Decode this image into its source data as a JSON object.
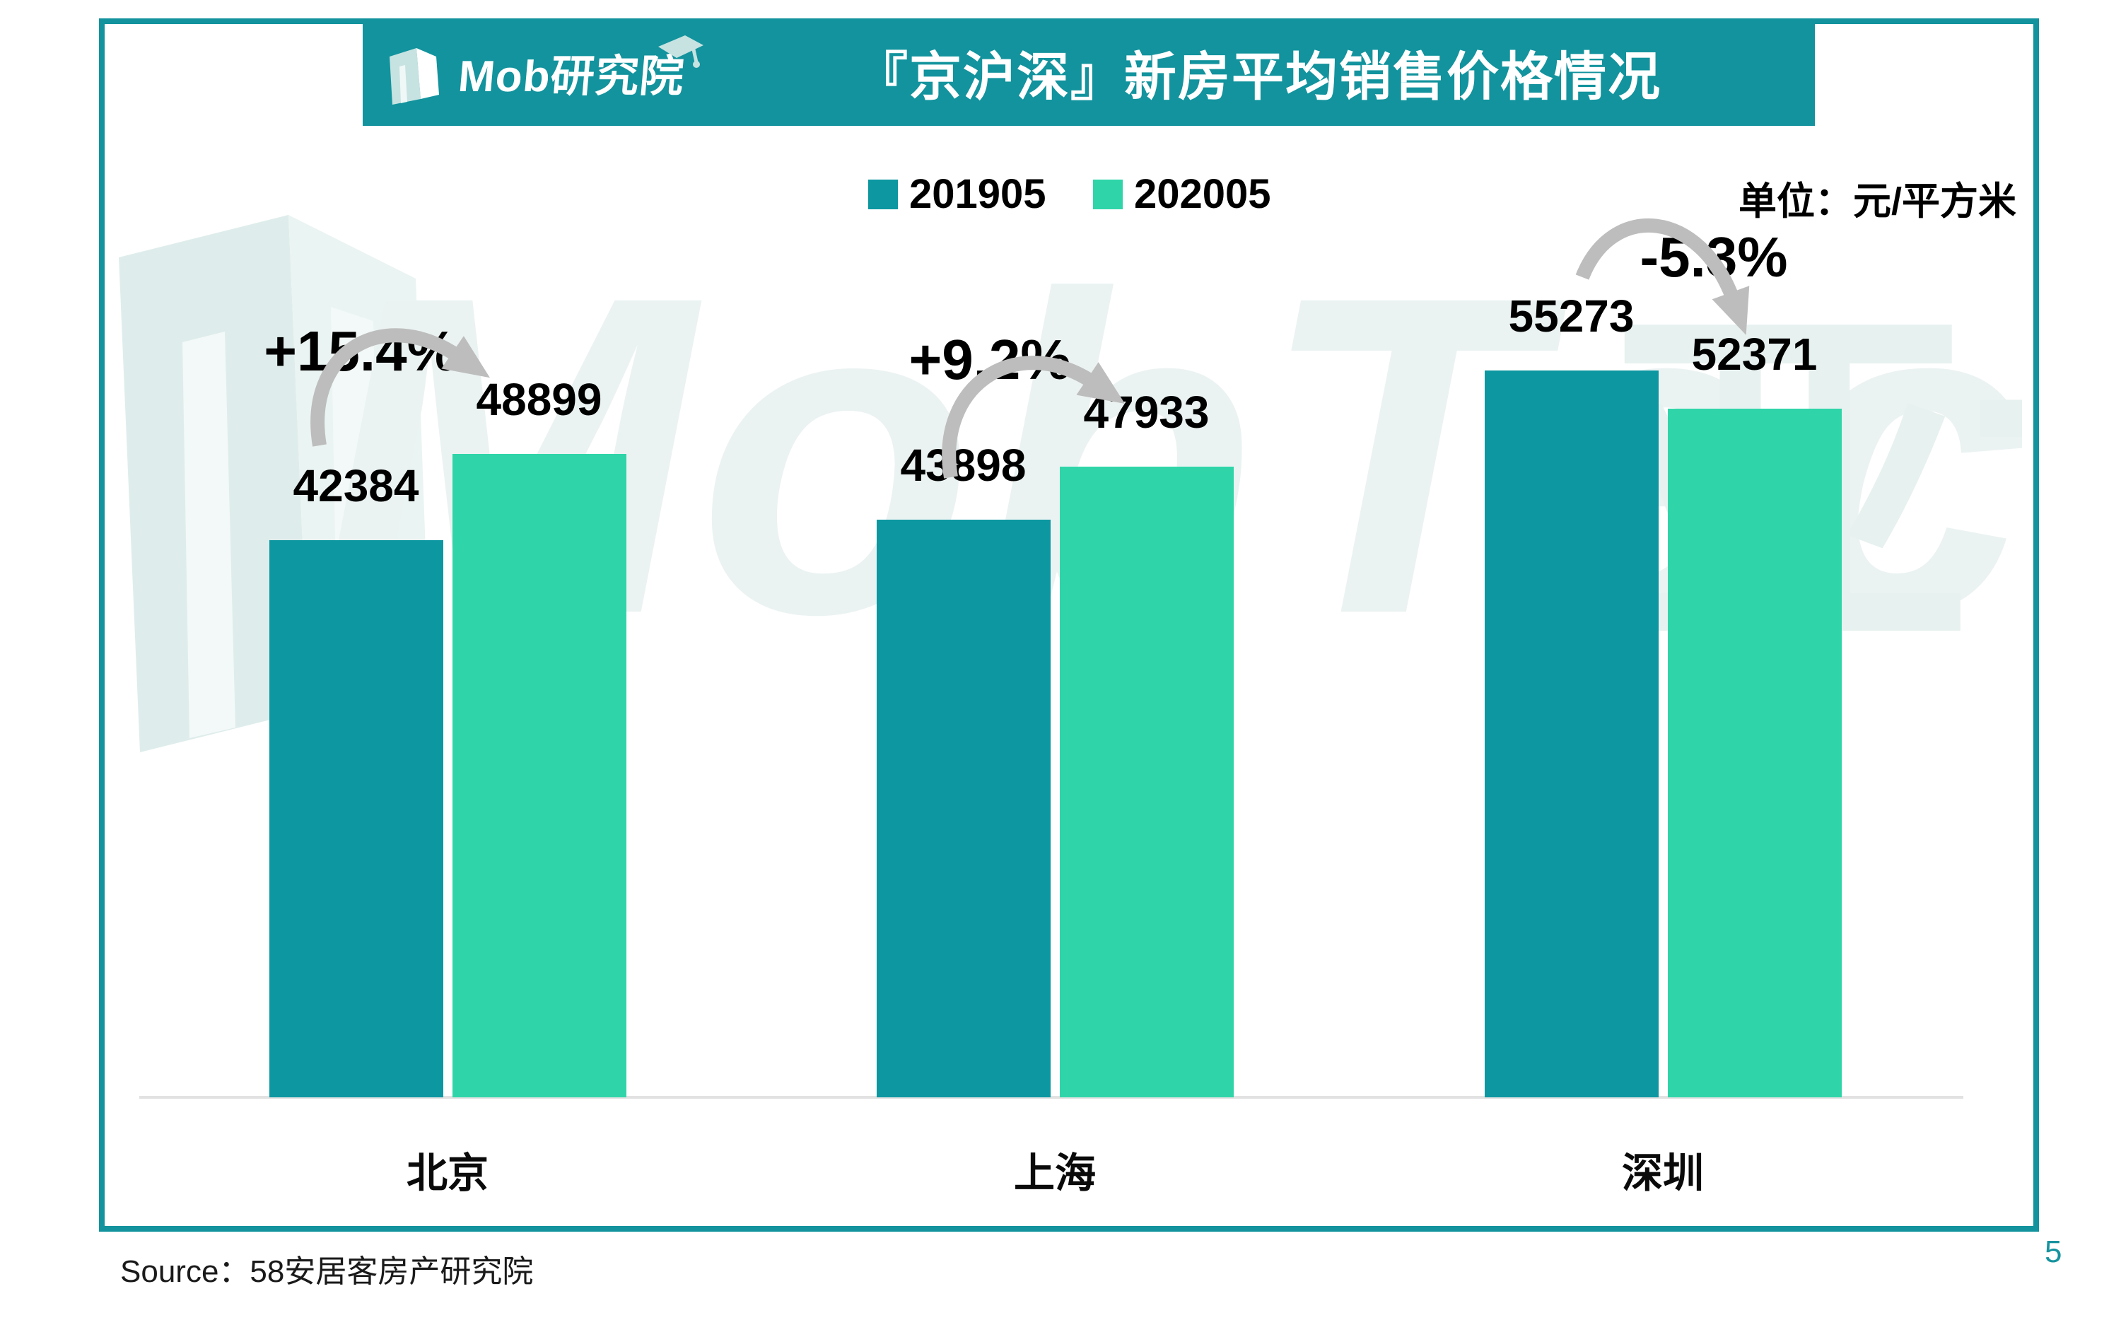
{
  "header": {
    "brand": "Mob研究院",
    "title": "『京沪深』新房平均销售价格情况"
  },
  "legend": {
    "items": [
      {
        "label": "201905",
        "color": "#0C97A1"
      },
      {
        "label": "202005",
        "color": "#2FD5A8"
      }
    ]
  },
  "unit_label": "单位：元/平方米",
  "watermark": {
    "latin": "MobTech",
    "cjk": "亚博"
  },
  "footer": {
    "source": "Source：58安居客房产研究院",
    "page_number": "5"
  },
  "chart_data": {
    "type": "bar",
    "title": "『京沪深』新房平均销售价格情况",
    "unit": "元/平方米",
    "categories": [
      "北京",
      "上海",
      "深圳"
    ],
    "series": [
      {
        "name": "201905",
        "color": "#0C97A1",
        "values": [
          42384,
          43898,
          55273
        ]
      },
      {
        "name": "202005",
        "color": "#2FD5A8",
        "values": [
          48899,
          47933,
          52371
        ]
      }
    ],
    "change_labels": [
      "+15.4%",
      "+9.2%",
      "-5.3%"
    ],
    "ylim": [
      0,
      58000
    ],
    "grid": false,
    "legend_position": "top",
    "value_labels": true,
    "arrow_color": "#BDBDBD",
    "axis_line_color": "#E2E2E2"
  }
}
